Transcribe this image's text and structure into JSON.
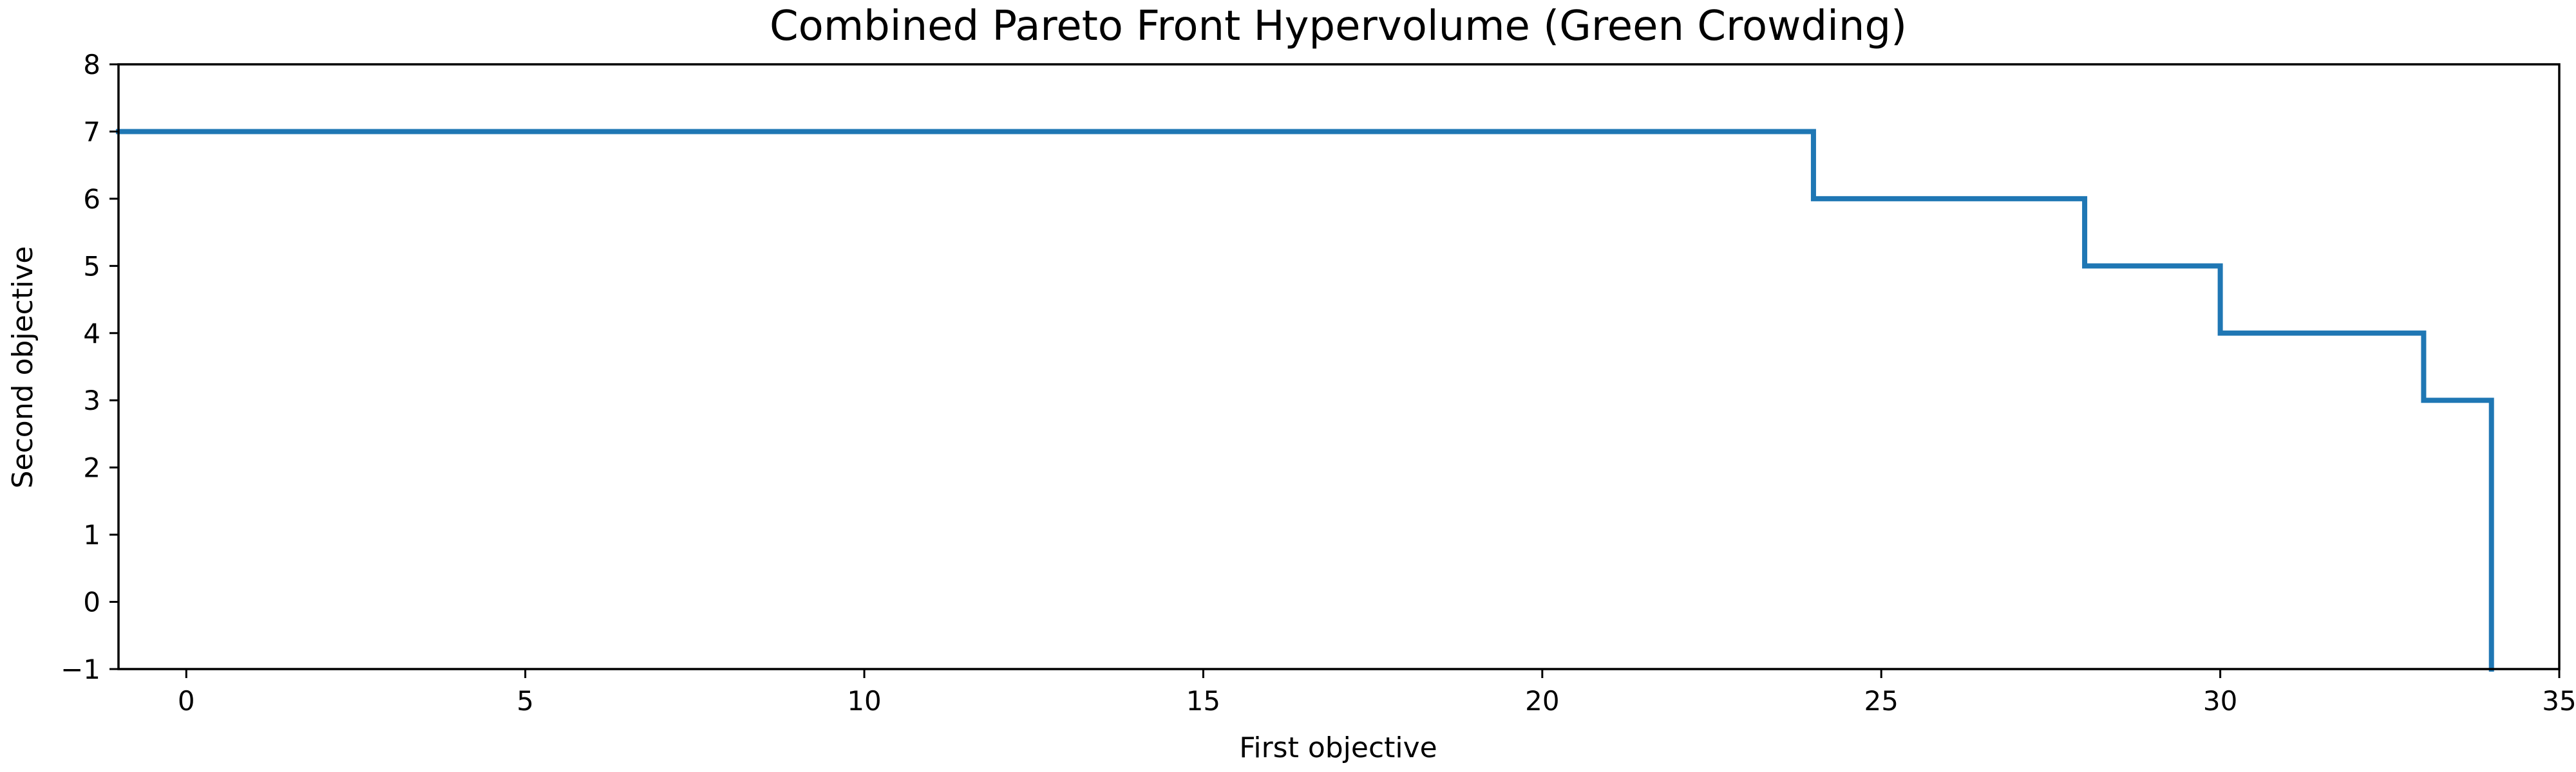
{
  "chart_data": {
    "type": "line",
    "step": "post",
    "title": "Combined Pareto Front Hypervolume (Green Crowding)",
    "xlabel": "First objective",
    "ylabel": "Second objective",
    "xlim": [
      -1,
      35
    ],
    "ylim": [
      -1,
      8
    ],
    "xticks": [
      0,
      5,
      10,
      15,
      20,
      25,
      30,
      35
    ],
    "yticks": [
      -1,
      0,
      1,
      2,
      3,
      4,
      5,
      6,
      7,
      8
    ],
    "xtick_labels": [
      "0",
      "5",
      "10",
      "15",
      "20",
      "25",
      "30",
      "35"
    ],
    "ytick_labels": [
      "−1",
      "0",
      "1",
      "2",
      "3",
      "4",
      "5",
      "6",
      "7",
      "8"
    ],
    "grid": false,
    "legend": "none",
    "series": [
      {
        "color": "#1f77b4",
        "points": [
          {
            "x": -1,
            "y": 7
          },
          {
            "x": 24,
            "y": 7
          },
          {
            "x": 24,
            "y": 6
          },
          {
            "x": 28,
            "y": 6
          },
          {
            "x": 28,
            "y": 5
          },
          {
            "x": 30,
            "y": 5
          },
          {
            "x": 30,
            "y": 4
          },
          {
            "x": 33,
            "y": 4
          },
          {
            "x": 33,
            "y": 3
          },
          {
            "x": 34,
            "y": 3
          },
          {
            "x": 34,
            "y": -1
          }
        ]
      }
    ]
  }
}
